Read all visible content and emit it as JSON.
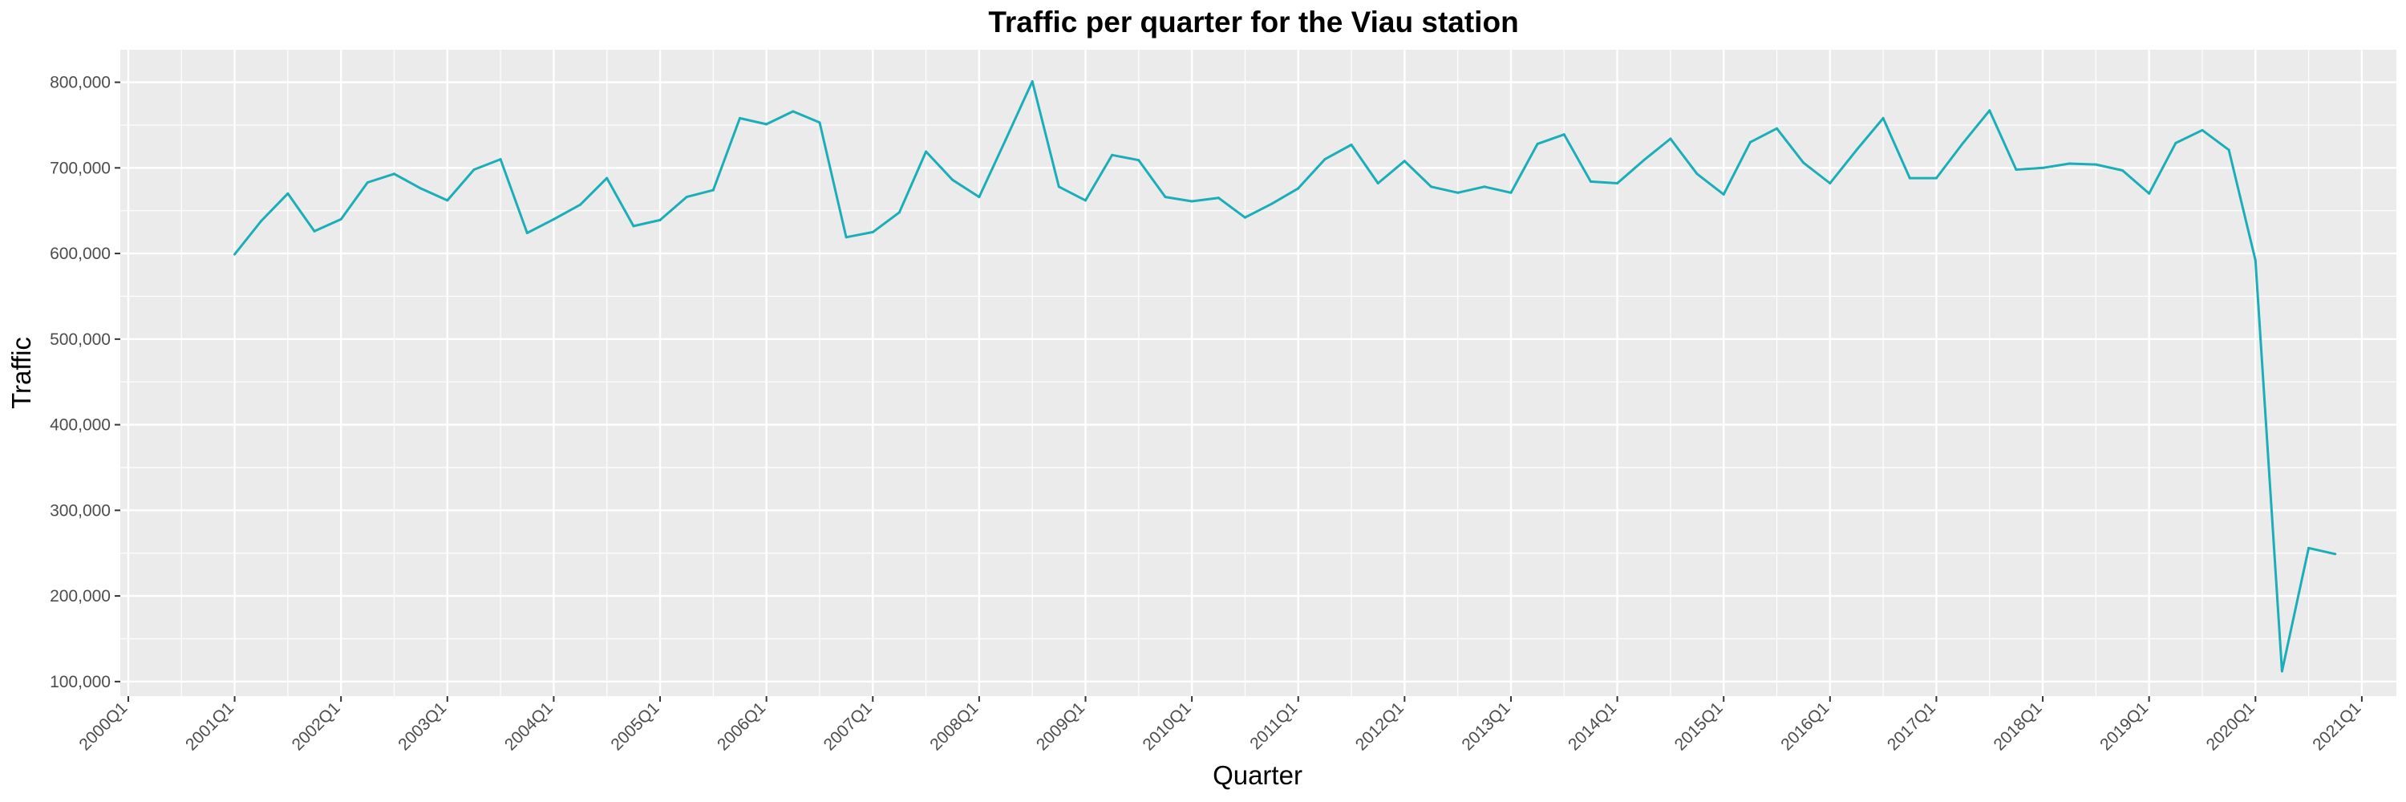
{
  "chart_data": {
    "type": "line",
    "title": "Traffic per quarter for the Viau station",
    "xlabel": "Quarter",
    "ylabel": "Traffic",
    "ylim": [
      83000,
      838000
    ],
    "xlim_quarters": [
      "2000Q1",
      "2021Q2"
    ],
    "grid": true,
    "legend": "none",
    "colors": {
      "line": "#1aaeb8",
      "panel": "#ebebeb",
      "grid": "#ffffff"
    },
    "x_ticks": [
      "2000Q1",
      "2001Q1",
      "2002Q1",
      "2003Q1",
      "2004Q1",
      "2005Q1",
      "2006Q1",
      "2007Q1",
      "2008Q1",
      "2009Q1",
      "2010Q1",
      "2011Q1",
      "2012Q1",
      "2013Q1",
      "2014Q1",
      "2015Q1",
      "2016Q1",
      "2017Q1",
      "2018Q1",
      "2019Q1",
      "2020Q1",
      "2021Q1"
    ],
    "y_ticks": [
      {
        "value": 100000,
        "label": "100,000"
      },
      {
        "value": 200000,
        "label": "200,000"
      },
      {
        "value": 300000,
        "label": "300,000"
      },
      {
        "value": 400000,
        "label": "400,000"
      },
      {
        "value": 500000,
        "label": "500,000"
      },
      {
        "value": 600000,
        "label": "600,000"
      },
      {
        "value": 700000,
        "label": "700,000"
      },
      {
        "value": 800000,
        "label": "800,000"
      }
    ],
    "x": [
      "2001Q1",
      "2001Q2",
      "2001Q3",
      "2001Q4",
      "2002Q1",
      "2002Q2",
      "2002Q3",
      "2002Q4",
      "2003Q1",
      "2003Q2",
      "2003Q3",
      "2003Q4",
      "2004Q1",
      "2004Q2",
      "2004Q3",
      "2004Q4",
      "2005Q1",
      "2005Q2",
      "2005Q3",
      "2005Q4",
      "2006Q1",
      "2006Q2",
      "2006Q3",
      "2006Q4",
      "2007Q1",
      "2007Q2",
      "2007Q3",
      "2007Q4",
      "2008Q1",
      "2008Q2",
      "2008Q3",
      "2008Q4",
      "2009Q1",
      "2009Q2",
      "2009Q3",
      "2009Q4",
      "2010Q1",
      "2010Q2",
      "2010Q3",
      "2010Q4",
      "2011Q1",
      "2011Q2",
      "2011Q3",
      "2011Q4",
      "2012Q1",
      "2012Q2",
      "2012Q3",
      "2012Q4",
      "2013Q1",
      "2013Q2",
      "2013Q3",
      "2013Q4",
      "2014Q1",
      "2014Q2",
      "2014Q3",
      "2014Q4",
      "2015Q1",
      "2015Q2",
      "2015Q3",
      "2015Q4",
      "2016Q1",
      "2016Q2",
      "2016Q3",
      "2016Q4",
      "2017Q1",
      "2017Q2",
      "2017Q3",
      "2017Q4",
      "2018Q1",
      "2018Q2",
      "2018Q3",
      "2018Q4",
      "2019Q1",
      "2019Q2",
      "2019Q3",
      "2019Q4",
      "2020Q1",
      "2020Q2",
      "2020Q3",
      "2020Q4"
    ],
    "values": [
      599000,
      638000,
      670000,
      626000,
      640000,
      683000,
      693000,
      676000,
      662000,
      698000,
      710000,
      624000,
      640000,
      657000,
      688000,
      632000,
      639000,
      666000,
      674000,
      758000,
      751000,
      766000,
      753000,
      619000,
      625000,
      648000,
      719000,
      686000,
      666000,
      733000,
      801000,
      678000,
      662000,
      715000,
      709000,
      666000,
      661000,
      665000,
      642000,
      658000,
      676000,
      710000,
      727000,
      682000,
      708000,
      678000,
      671000,
      678000,
      671000,
      728000,
      739000,
      684000,
      682000,
      709000,
      734000,
      693000,
      669000,
      730000,
      746000,
      706000,
      682000,
      721000,
      758000,
      688000,
      688000,
      729000,
      767000,
      698000,
      700000,
      705000,
      704000,
      697000,
      670000,
      729000,
      744000,
      721000,
      592000,
      112000,
      256000,
      249000
    ]
  }
}
